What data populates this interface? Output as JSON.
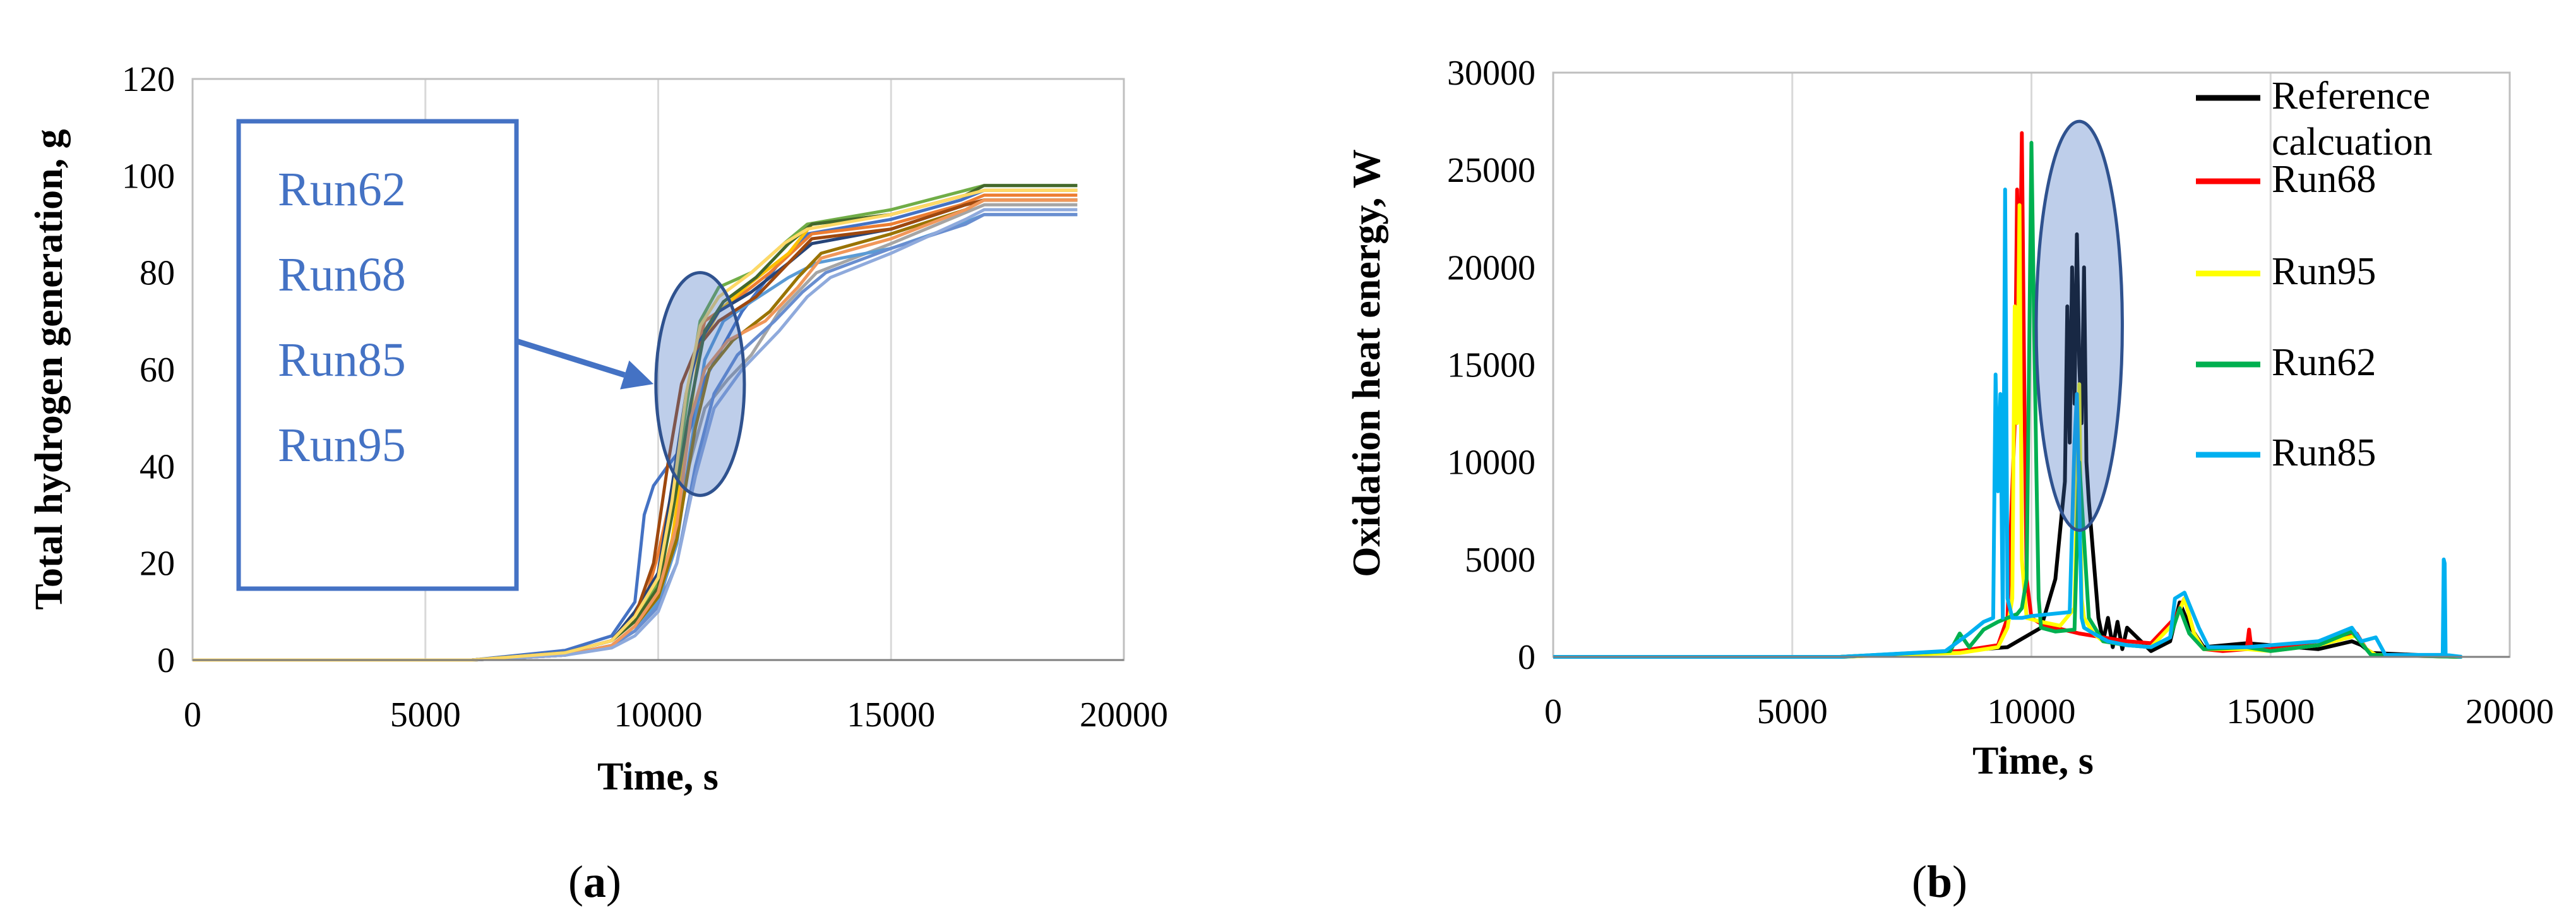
{
  "chart_data": [
    {
      "type": "line",
      "panel_label": {
        "open": "(",
        "letter": "a",
        "close": ")"
      },
      "xlabel": "Time, s",
      "ylabel": "Total hydrogen generation, g",
      "xlim": [
        0,
        20000
      ],
      "ylim": [
        0,
        120
      ],
      "xticks": [
        0,
        5000,
        10000,
        15000,
        20000
      ],
      "yticks": [
        0,
        20,
        40,
        60,
        80,
        100,
        120
      ],
      "grid": "vertical",
      "callout": {
        "runs": [
          "Run62",
          "Run68",
          "Run85",
          "Run95"
        ],
        "highlight_ellipse": {
          "center": [
            10900,
            57
          ],
          "x_half_width": 950,
          "y_half_height": 23
        },
        "arrow_to": [
          9900,
          57
        ]
      },
      "series": [
        {
          "color": "#4472c4",
          "x": [
            0,
            6000,
            8000,
            9000,
            9500,
            9700,
            9900,
            10200,
            10600,
            11000,
            11800,
            12600,
            13200,
            15000,
            16500,
            17000,
            18500,
            19000
          ],
          "y": [
            0,
            0,
            2,
            5,
            12,
            30,
            36,
            40,
            45,
            58,
            72,
            82,
            88,
            91,
            95,
            97,
            97,
            97
          ]
        },
        {
          "color": "#ed7d31",
          "x": [
            0,
            6000,
            8000,
            9000,
            9500,
            9800,
            10000,
            10300,
            10600,
            11000,
            11600,
            12400,
            13300,
            15000,
            16500,
            17000,
            18500,
            19000
          ],
          "y": [
            0,
            0,
            1.5,
            4,
            9,
            15,
            22,
            35,
            55,
            70,
            74,
            80,
            88,
            90,
            94,
            96,
            96,
            96
          ]
        },
        {
          "color": "#a5a5a5",
          "x": [
            0,
            6000,
            8000,
            9000,
            9500,
            10000,
            10300,
            10600,
            11000,
            11500,
            12000,
            12600,
            13400,
            15000,
            16500,
            17000,
            18500,
            19000
          ],
          "y": [
            0,
            0,
            1,
            3,
            6,
            11,
            22,
            38,
            52,
            58,
            63,
            72,
            80,
            86,
            92,
            94,
            94,
            94
          ]
        },
        {
          "color": "#ffc000",
          "x": [
            0,
            6000,
            8000,
            9000,
            9500,
            10000,
            10300,
            10600,
            10900,
            11300,
            12000,
            12800,
            13300,
            15000,
            16600,
            17000,
            18500,
            19000
          ],
          "y": [
            0,
            0,
            1.5,
            4,
            8,
            14,
            25,
            45,
            65,
            72,
            78,
            84,
            90,
            92,
            96,
            97,
            97,
            97
          ]
        },
        {
          "color": "#5b9bd5",
          "x": [
            0,
            6000,
            8000,
            9000,
            9500,
            10000,
            10400,
            10700,
            11000,
            11400,
            12000,
            12800,
            13400,
            15000,
            16500,
            17000,
            18500,
            19000
          ],
          "y": [
            0,
            0,
            1,
            3,
            6,
            12,
            24,
            44,
            62,
            70,
            74,
            79,
            82,
            85,
            90,
            92,
            92,
            92
          ]
        },
        {
          "color": "#70ad47",
          "x": [
            0,
            6000,
            8000,
            9000,
            9500,
            10000,
            10300,
            10600,
            10900,
            11300,
            12000,
            12700,
            13200,
            15000,
            16600,
            17000,
            18500,
            19000
          ],
          "y": [
            0,
            0,
            1.5,
            4,
            9,
            16,
            30,
            52,
            70,
            77,
            80,
            86,
            90,
            93,
            97,
            98,
            98,
            98
          ]
        },
        {
          "color": "#264478",
          "x": [
            0,
            6000,
            8000,
            9000,
            9500,
            10000,
            10300,
            10600,
            10900,
            11300,
            12000,
            12800,
            13300,
            15000,
            16600,
            17000,
            18500,
            19000
          ],
          "y": [
            0,
            0,
            1.5,
            4,
            10,
            18,
            36,
            55,
            66,
            72,
            76,
            82,
            86,
            89,
            94,
            95,
            95,
            95
          ]
        },
        {
          "color": "#9e480e",
          "x": [
            0,
            6000,
            8000,
            9000,
            9500,
            9900,
            10200,
            10500,
            10800,
            11300,
            12100,
            12800,
            13300,
            15000,
            16600,
            17000,
            18500,
            19000
          ],
          "y": [
            0,
            0,
            1.5,
            4,
            9,
            20,
            40,
            57,
            64,
            70,
            75,
            82,
            87,
            89,
            94,
            95,
            95,
            95
          ]
        },
        {
          "color": "#997300",
          "x": [
            0,
            6000,
            8000,
            9000,
            9500,
            10000,
            10400,
            10800,
            11100,
            11600,
            12400,
            13000,
            13500,
            15000,
            16600,
            17000,
            18500,
            19000
          ],
          "y": [
            0,
            0,
            1,
            3,
            7,
            13,
            25,
            48,
            60,
            66,
            72,
            79,
            84,
            88,
            93,
            95,
            95,
            95
          ]
        },
        {
          "color": "#43682b",
          "x": [
            0,
            6000,
            8000,
            9000,
            9500,
            10000,
            10300,
            10700,
            11000,
            11400,
            12100,
            12800,
            13300,
            15000,
            16600,
            17000,
            18500,
            19000
          ],
          "y": [
            0,
            0,
            1.5,
            4,
            8,
            15,
            30,
            53,
            68,
            74,
            79,
            86,
            90,
            92,
            96,
            98,
            98,
            98
          ]
        },
        {
          "color": "#698ed0",
          "x": [
            0,
            6000,
            8000,
            9000,
            9500,
            10000,
            10400,
            10800,
            11200,
            11700,
            12500,
            13100,
            13600,
            15000,
            16600,
            17000,
            18500,
            19000
          ],
          "y": [
            0,
            0,
            1,
            3,
            6,
            11,
            20,
            40,
            55,
            63,
            70,
            76,
            80,
            85,
            90,
            92,
            92,
            92
          ]
        },
        {
          "color": "#f1975a",
          "x": [
            0,
            6000,
            8000,
            9000,
            9500,
            10000,
            10400,
            10700,
            11000,
            11500,
            12300,
            13000,
            13500,
            15000,
            16600,
            17000,
            18500,
            19000
          ],
          "y": [
            0,
            0,
            1,
            3,
            7,
            14,
            28,
            50,
            60,
            66,
            70,
            77,
            83,
            87,
            93,
            95,
            95,
            95
          ]
        },
        {
          "color": "#8faadc",
          "x": [
            0,
            6000,
            8000,
            9000,
            9500,
            10000,
            10400,
            10800,
            11200,
            11800,
            12600,
            13200,
            13700,
            15000,
            16600,
            17000,
            18500,
            19000
          ],
          "y": [
            0,
            0,
            1,
            2.5,
            5,
            10,
            20,
            38,
            52,
            60,
            68,
            75,
            79,
            84,
            91,
            93,
            93,
            93
          ]
        },
        {
          "color": "#ffd966",
          "x": [
            0,
            6000,
            8000,
            9000,
            9500,
            10000,
            10300,
            10600,
            10900,
            11300,
            12000,
            12700,
            13200,
            15000,
            16600,
            17000,
            18500,
            19000
          ],
          "y": [
            0,
            0,
            1.5,
            4,
            9,
            17,
            33,
            55,
            69,
            75,
            80,
            86,
            89,
            92,
            96,
            97,
            97,
            97
          ]
        }
      ]
    },
    {
      "type": "line",
      "panel_label": {
        "open": "(",
        "letter": "b",
        "close": ")"
      },
      "xlabel": "Time, s",
      "ylabel": "Oxidation heat energy, W",
      "xlim": [
        0,
        20000
      ],
      "ylim": [
        0,
        30000
      ],
      "xticks": [
        0,
        5000,
        10000,
        15000,
        20000
      ],
      "yticks": [
        0,
        5000,
        10000,
        15000,
        20000,
        25000,
        30000
      ],
      "grid": "vertical",
      "highlight_ellipse": {
        "center": [
          11000,
          17000
        ],
        "x_half_width": 900,
        "y_half_height": 10500
      },
      "legend": [
        {
          "label_lines": [
            "Reference",
            "calcuation"
          ],
          "color": "#000000"
        },
        {
          "label_lines": [
            "Run68"
          ],
          "color": "#ff0000"
        },
        {
          "label_lines": [
            "Run95"
          ],
          "color": "#ffff00"
        },
        {
          "label_lines": [
            "Run62"
          ],
          "color": "#00b050"
        },
        {
          "label_lines": [
            "Run85"
          ],
          "color": "#00b0f0"
        }
      ],
      "series": [
        {
          "name": "Reference calcuation",
          "color": "#000000",
          "x": [
            0,
            6000,
            8000,
            9500,
            10200,
            10500,
            10700,
            10750,
            10800,
            10850,
            10900,
            10950,
            11000,
            11050,
            11100,
            11150,
            11200,
            11300,
            11400,
            11500,
            11600,
            11700,
            11800,
            11900,
            12000,
            12500,
            12900,
            13100,
            13300,
            13600,
            14500,
            15000,
            16000,
            16700,
            16900,
            17100,
            19000
          ],
          "y": [
            0,
            0,
            200,
            500,
            1500,
            4000,
            9000,
            18000,
            11000,
            20000,
            13000,
            21700,
            15000,
            12000,
            20000,
            10000,
            8000,
            5000,
            2000,
            800,
            2000,
            500,
            1800,
            400,
            1500,
            300,
            800,
            2800,
            1600,
            500,
            700,
            600,
            400,
            800,
            600,
            200,
            0
          ]
        },
        {
          "name": "Run68",
          "color": "#ff0000",
          "x": [
            0,
            6000,
            8500,
            9300,
            9500,
            9650,
            9700,
            9750,
            9800,
            9850,
            9900,
            10000,
            10200,
            10500,
            11000,
            11500,
            12000,
            12500,
            13000,
            13200,
            13400,
            13600,
            14000,
            14500,
            14550,
            14600,
            15000,
            16000,
            16800,
            17000,
            17200,
            19000
          ],
          "y": [
            0,
            0,
            300,
            600,
            2000,
            12000,
            24000,
            17000,
            26900,
            14000,
            4000,
            2000,
            1700,
            1500,
            1200,
            1000,
            800,
            700,
            2000,
            3000,
            1200,
            400,
            300,
            400,
            1400,
            400,
            400,
            800,
            1200,
            400,
            100,
            0
          ]
        },
        {
          "name": "Run95",
          "color": "#ffff00",
          "x": [
            0,
            6000,
            8500,
            9300,
            9500,
            9600,
            9650,
            9700,
            9750,
            9800,
            9900,
            10200,
            10600,
            10900,
            11000,
            11050,
            11100,
            11300,
            11500,
            12000,
            12500,
            13000,
            13200,
            13400,
            13600,
            14500,
            15000,
            16000,
            16800,
            17000,
            17200,
            19000
          ],
          "y": [
            0,
            0,
            200,
            500,
            1500,
            3000,
            18000,
            12000,
            23200,
            5000,
            2000,
            1800,
            1600,
            2500,
            14000,
            3000,
            2000,
            1200,
            800,
            600,
            500,
            1800,
            3000,
            1200,
            400,
            400,
            300,
            600,
            1100,
            400,
            100,
            0
          ]
        },
        {
          "name": "Run62",
          "color": "#00b050",
          "x": [
            0,
            6000,
            8300,
            8500,
            8700,
            9000,
            9300,
            9500,
            9700,
            9800,
            9900,
            9950,
            10000,
            10050,
            10100,
            10150,
            10200,
            10500,
            10900,
            11000,
            11200,
            11500,
            12000,
            12500,
            12900,
            13100,
            13300,
            13600,
            14500,
            15000,
            16000,
            16700,
            16900,
            17100,
            19000
          ],
          "y": [
            0,
            0,
            300,
            1200,
            500,
            1400,
            1800,
            2000,
            2200,
            2500,
            4000,
            15000,
            26400,
            18000,
            10000,
            3000,
            1500,
            1300,
            1400,
            10000,
            2000,
            800,
            600,
            500,
            1000,
            2500,
            1200,
            400,
            500,
            300,
            600,
            1300,
            700,
            100,
            0
          ]
        },
        {
          "name": "Run85",
          "color": "#00b0f0",
          "x": [
            0,
            6000,
            8200,
            8700,
            9000,
            9200,
            9250,
            9300,
            9350,
            9400,
            9450,
            9500,
            9600,
            9800,
            10000,
            10400,
            10800,
            10900,
            10950,
            11000,
            11050,
            11100,
            11300,
            11600,
            12000,
            12500,
            12900,
            13000,
            13200,
            13500,
            13700,
            14500,
            16000,
            16700,
            16900,
            17200,
            17400,
            18600,
            18620,
            18640,
            18660,
            19000
          ],
          "y": [
            0,
            0,
            300,
            1200,
            1800,
            2000,
            14500,
            8500,
            13500,
            2000,
            24000,
            3000,
            2000,
            2000,
            2100,
            2200,
            2300,
            11000,
            13500,
            8000,
            2000,
            1500,
            1200,
            800,
            600,
            500,
            1000,
            3000,
            3300,
            1500,
            500,
            500,
            800,
            1500,
            800,
            1000,
            100,
            100,
            5000,
            4800,
            100,
            0
          ]
        }
      ]
    }
  ]
}
